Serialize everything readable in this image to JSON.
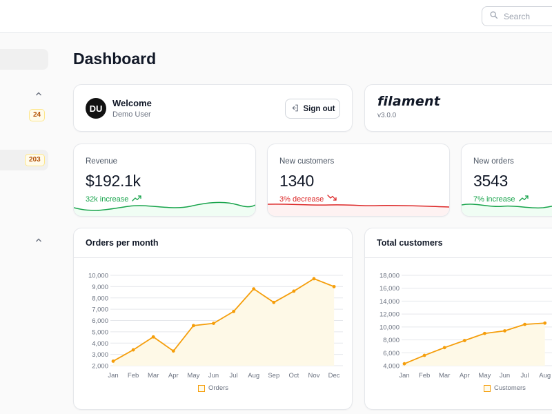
{
  "topbar": {
    "search_placeholder": "Search"
  },
  "sidebar": {
    "badges": [
      "24",
      "203"
    ]
  },
  "page": {
    "title": "Dashboard"
  },
  "account": {
    "initials": "DU",
    "title": "Welcome",
    "user": "Demo User",
    "signout_label": "Sign out"
  },
  "filament": {
    "brand": "filament",
    "version": "v3.0.0"
  },
  "stats": [
    {
      "label": "Revenue",
      "value": "$192.1k",
      "description": "32k increase",
      "trend": "up",
      "color": "#16a34a",
      "fill": "#f0fdf4"
    },
    {
      "label": "New customers",
      "value": "1340",
      "description": "3% decrease",
      "trend": "down",
      "color": "#dc2626",
      "fill": "#fef2f2"
    },
    {
      "label": "New orders",
      "value": "3543",
      "description": "7% increase",
      "trend": "up",
      "color": "#16a34a",
      "fill": "#f0fdf4"
    }
  ],
  "colors": {
    "accent": "#f59e0b",
    "accent_fill": "#fef9e7",
    "success": "#16a34a",
    "danger": "#dc2626"
  },
  "icons": {
    "search": "search-icon",
    "signout": "logout-icon",
    "trend_up": "trend-up-icon",
    "trend_down": "trend-down-icon",
    "chevron": "chevron-up-icon"
  },
  "chart_data": [
    {
      "type": "area",
      "title": "Orders per month",
      "categories": [
        "Jan",
        "Feb",
        "Mar",
        "Apr",
        "May",
        "Jun",
        "Jul",
        "Aug",
        "Sep",
        "Oct",
        "Nov",
        "Dec"
      ],
      "series": [
        {
          "name": "Orders",
          "values": [
            2400,
            3400,
            4550,
            3300,
            5550,
            5750,
            6800,
            8800,
            7600,
            8600,
            9700,
            9000
          ]
        }
      ],
      "ylim": [
        2000,
        10000
      ],
      "yticks": [
        2000,
        3000,
        4000,
        5000,
        6000,
        7000,
        8000,
        9000,
        10000
      ],
      "ytick_labels": [
        "2,000",
        "3,000",
        "4,000",
        "5,000",
        "6,000",
        "7,000",
        "8,000",
        "9,000",
        "10,000"
      ],
      "grid": true,
      "legend": "bottom"
    },
    {
      "type": "area",
      "title": "Total customers",
      "categories": [
        "Jan",
        "Feb",
        "Mar",
        "Apr",
        "May",
        "Jun",
        "Jul",
        "Aug"
      ],
      "series": [
        {
          "name": "Customers",
          "values": [
            4300,
            5600,
            6800,
            7900,
            9000,
            9400,
            10400,
            10600
          ]
        }
      ],
      "ylim": [
        4000,
        18000
      ],
      "yticks": [
        4000,
        6000,
        8000,
        10000,
        12000,
        14000,
        16000,
        18000
      ],
      "ytick_labels": [
        "4,000",
        "6,000",
        "8,000",
        "10,000",
        "12,000",
        "14,000",
        "16,000",
        "18,000"
      ],
      "grid": true,
      "legend": "bottom"
    }
  ]
}
